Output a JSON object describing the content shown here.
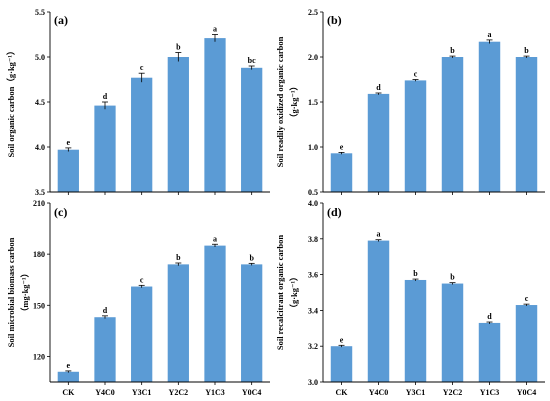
{
  "chart_data": [
    {
      "id": "a",
      "type": "bar",
      "panel_label": "(a)",
      "categories": [
        "CK",
        "Y4C0",
        "Y3C1",
        "Y2C2",
        "Y1C3",
        "Y0C4"
      ],
      "values": [
        3.97,
        4.46,
        4.77,
        5.0,
        5.21,
        4.88
      ],
      "errors": [
        0.02,
        0.04,
        0.05,
        0.05,
        0.04,
        0.02
      ],
      "letters": [
        "e",
        "d",
        "c",
        "b",
        "a",
        "bc"
      ],
      "ylabel_line1": "Soil organic carbon（g·kg⁻¹）",
      "ylabel_line2": "",
      "ylim": [
        3.5,
        5.5
      ],
      "yticks": [
        "3.5",
        "4.0",
        "4.5",
        "5.0",
        "5.5"
      ],
      "show_xticklabels": false,
      "bar_color": "#5b9bd5"
    },
    {
      "id": "b",
      "type": "bar",
      "panel_label": "(b)",
      "categories": [
        "CK",
        "Y4C0",
        "Y3C1",
        "Y2C2",
        "Y1C3",
        "Y0C4"
      ],
      "values": [
        0.93,
        1.59,
        1.74,
        2.0,
        2.17,
        2.0
      ],
      "errors": [
        0.01,
        0.01,
        0.01,
        0.01,
        0.02,
        0.01
      ],
      "letters": [
        "e",
        "d",
        "c",
        "b",
        "a",
        "b"
      ],
      "ylabel_line1": "Soil readily oxidized organic carbon",
      "ylabel_line2": "（g·kg⁻¹）",
      "ylim": [
        0.5,
        2.5
      ],
      "yticks": [
        "0.5",
        "1.0",
        "1.5",
        "2.0",
        "2.5"
      ],
      "show_xticklabels": false,
      "bar_color": "#5b9bd5"
    },
    {
      "id": "c",
      "type": "bar",
      "panel_label": "(c)",
      "categories": [
        "CK",
        "Y4C0",
        "Y3C1",
        "Y2C2",
        "Y1C3",
        "Y0C4"
      ],
      "values": [
        111,
        143,
        161,
        174,
        185,
        174
      ],
      "errors": [
        0.5,
        0.8,
        0.7,
        0.8,
        0.8,
        0.6
      ],
      "letters": [
        "e",
        "d",
        "c",
        "b",
        "a",
        "b"
      ],
      "ylabel_line1": "Soil microbial biomass carbon",
      "ylabel_line2": "（mg·kg⁻¹）",
      "ylim": [
        105,
        210
      ],
      "yticks": [
        "120",
        "150",
        "180",
        "210"
      ],
      "show_xticklabels": true,
      "bar_color": "#5b9bd5"
    },
    {
      "id": "d",
      "type": "bar",
      "panel_label": "(d)",
      "categories": [
        "CK",
        "Y4C0",
        "Y3C1",
        "Y2C2",
        "Y1C3",
        "Y0C4"
      ],
      "values": [
        3.2,
        3.79,
        3.57,
        3.55,
        3.33,
        3.43
      ],
      "errors": [
        0.005,
        0.005,
        0.005,
        0.005,
        0.005,
        0.005
      ],
      "letters": [
        "e",
        "a",
        "b",
        "b",
        "d",
        "c"
      ],
      "ylabel_line1": "Soil recalcitrant organic carbon",
      "ylabel_line2": "（g·kg⁻¹）",
      "ylim": [
        3.0,
        4.0
      ],
      "yticks": [
        "3.0",
        "3.2",
        "3.4",
        "3.6",
        "3.8",
        "4.0"
      ],
      "show_xticklabels": true,
      "bar_color": "#5b9bd5"
    }
  ]
}
